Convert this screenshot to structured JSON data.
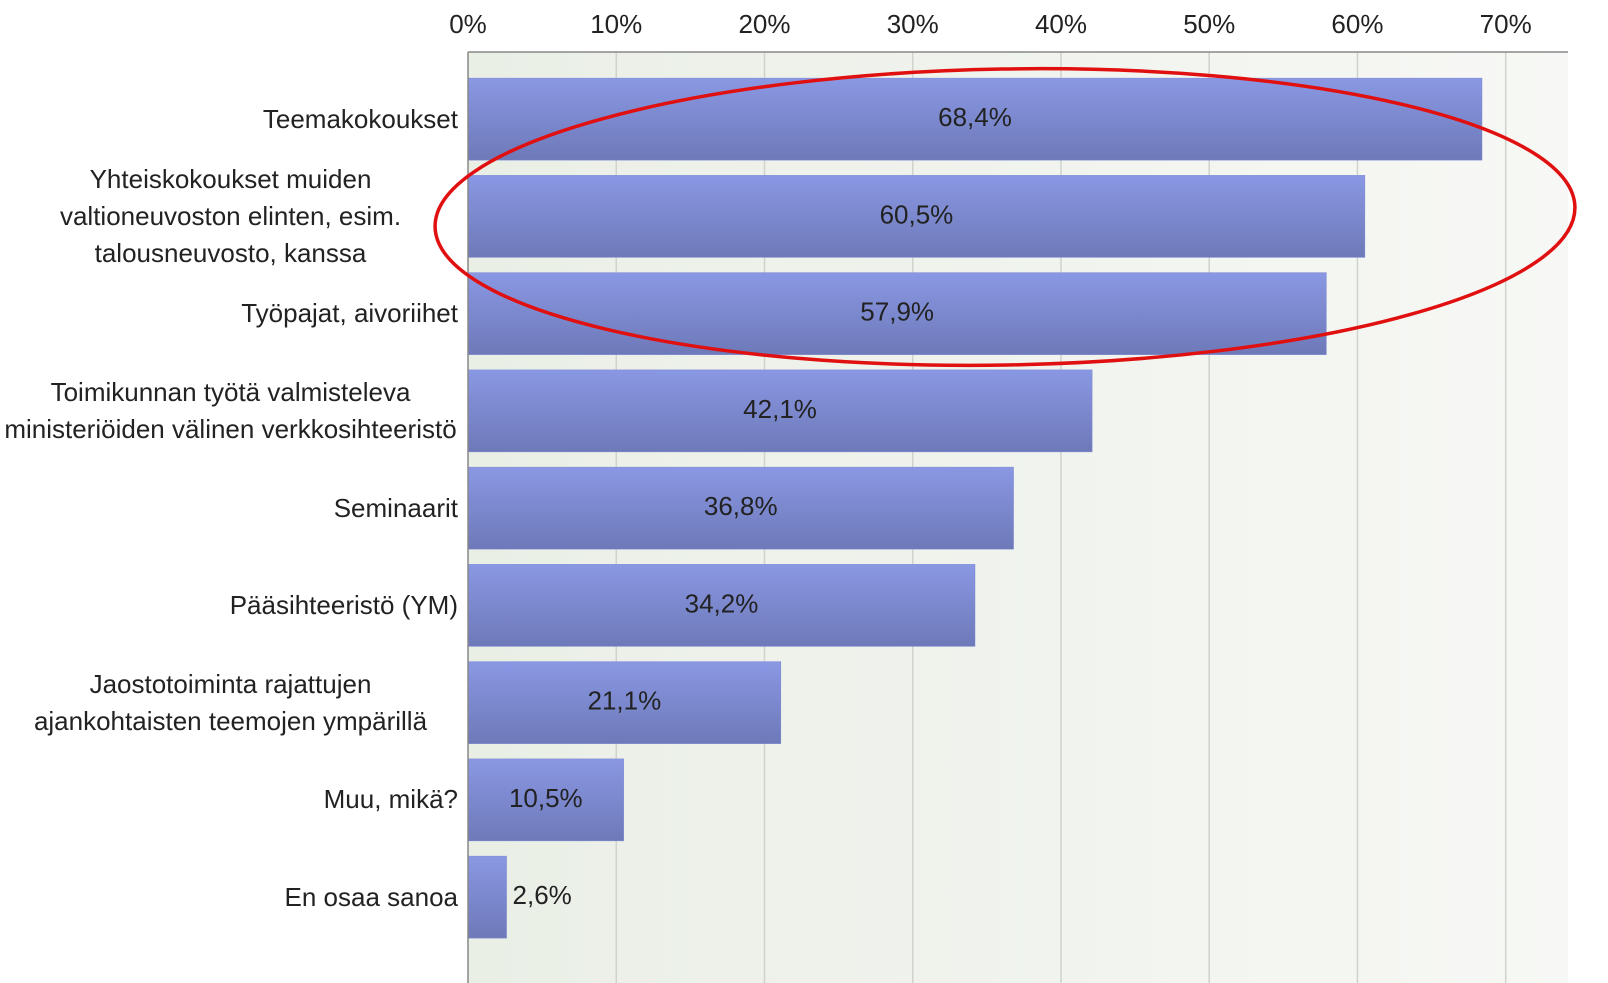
{
  "chart_data": {
    "type": "hbar",
    "categories": [
      "Teemakokoukset",
      "Yhteiskokoukset muiden valtioneuvoston elinten, esim. talousneuvosto, kanssa",
      "Työpajat, aivoriihet",
      "Toimikunnan työtä valmisteleva ministeriöiden välinen verkkosihteeristö",
      "Seminaarit",
      "Pääsihteeristö (YM)",
      "Jaostotoiminta rajattujen ajankohtaisten teemojen ympärillä",
      "Muu, mikä?",
      "En osaa sanoa"
    ],
    "values": [
      68.4,
      60.5,
      57.9,
      42.1,
      36.8,
      34.2,
      21.1,
      10.5,
      2.6
    ],
    "value_labels": [
      "68,4%",
      "60,5%",
      "57,9%",
      "42,1%",
      "36,8%",
      "34,2%",
      "21,1%",
      "10,5%",
      "2,6%"
    ],
    "color": "#7b88d2",
    "xlim": [
      0,
      74
    ],
    "xticks": [
      {
        "value": 0,
        "label": "0%"
      },
      {
        "value": 10,
        "label": "10%"
      },
      {
        "value": 20,
        "label": "20%"
      },
      {
        "value": 30,
        "label": "30%"
      },
      {
        "value": 40,
        "label": "40%"
      },
      {
        "value": 50,
        "label": "50%"
      },
      {
        "value": 60,
        "label": "60%"
      },
      {
        "value": 70,
        "label": "70%"
      }
    ],
    "grid": true
  }
}
